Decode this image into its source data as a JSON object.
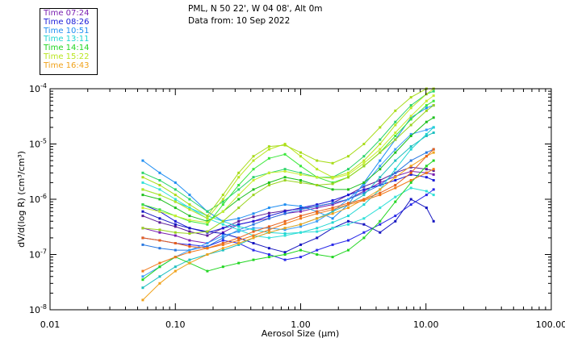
{
  "header": {
    "location": "PML, N 50 22', W 04 08', Alt 0m",
    "date": "Data from: 10 Sep 2022"
  },
  "legend": [
    {
      "label": "Time 07:24",
      "color": "#7a1fb0"
    },
    {
      "label": "Time 08:26",
      "color": "#1a1ad8"
    },
    {
      "label": "Time 10:51",
      "color": "#1f8ef2"
    },
    {
      "label": "Time 13:11",
      "color": "#1fd6d2"
    },
    {
      "label": "Time 14:14",
      "color": "#22d622"
    },
    {
      "label": "Time 15:22",
      "color": "#b9e61f"
    },
    {
      "label": "Time 16:43",
      "color": "#f0a21a"
    }
  ],
  "chart_data": {
    "type": "line",
    "title": "",
    "xlabel": "Aerosol Size (μm)",
    "ylabel": "dV/d(log R)  (cm³/cm³)",
    "xscale": "log",
    "yscale": "log",
    "xlim": [
      0.01,
      100
    ],
    "ylim": [
      1e-08,
      0.0001
    ],
    "xticks": [
      "0.01",
      "0.10",
      "1.00",
      "10.00",
      "100.00"
    ],
    "yticks": [
      {
        "base": "10",
        "exp": "-8"
      },
      {
        "base": "10",
        "exp": "-7"
      },
      {
        "base": "10",
        "exp": "-6"
      },
      {
        "base": "10",
        "exp": "-5"
      },
      {
        "base": "10",
        "exp": "-4"
      }
    ],
    "x": [
      0.055,
      0.075,
      0.1,
      0.13,
      0.18,
      0.24,
      0.32,
      0.42,
      0.56,
      0.75,
      1.0,
      1.35,
      1.8,
      2.4,
      3.2,
      4.3,
      5.7,
      7.6,
      10.1,
      11.5
    ],
    "series": [
      {
        "name": "Time 07:24",
        "color": "#7a1fb0",
        "values": [
          3e-07,
          2.5e-07,
          2.2e-07,
          1.8e-07,
          1.6e-07,
          2.5e-07,
          3.5e-07,
          4e-07,
          4.5e-07,
          5.5e-07,
          6e-07,
          7e-07,
          8e-07,
          1e-06,
          1.4e-06,
          2e-06,
          2.6e-06,
          3.2e-06,
          3e-06,
          2.8e-06
        ]
      },
      {
        "name": "Time 07:24",
        "color": "#5a1a98",
        "values": [
          5e-07,
          3.8e-07,
          3.2e-07,
          2.6e-07,
          2.2e-07,
          3e-07,
          4e-07,
          4.8e-07,
          5.6e-07,
          6.2e-07,
          6.8e-07,
          7.5e-07,
          8.5e-07,
          1.2e-06,
          1.7e-06,
          2.2e-06,
          3e-06,
          3.8e-06,
          3.5e-06,
          3.3e-06
        ]
      },
      {
        "name": "Time 08:26",
        "color": "#1a1ad8",
        "values": [
          8e-07,
          6e-07,
          4e-07,
          3e-07,
          2.5e-07,
          3e-07,
          3.5e-07,
          4e-07,
          5e-07,
          6e-07,
          7e-07,
          8e-07,
          9.5e-07,
          1.2e-06,
          1.5e-06,
          1.8e-06,
          2.2e-06,
          2.8e-06,
          2.5e-06,
          2.2e-06
        ]
      },
      {
        "name": "Time 08:26",
        "color": "#2a2ae8",
        "values": [
          2e-07,
          1.8e-07,
          1.6e-07,
          1.5e-07,
          1.4e-07,
          1.8e-07,
          1.6e-07,
          1.2e-07,
          1e-07,
          8e-08,
          9e-08,
          1.2e-07,
          1.5e-07,
          1.8e-07,
          2.5e-07,
          3.5e-07,
          5e-07,
          8e-07,
          1.2e-06,
          1.5e-06
        ]
      },
      {
        "name": "Time 08:26",
        "color": "#1515c0",
        "values": [
          6e-07,
          4.5e-07,
          3.5e-07,
          3e-07,
          2.6e-07,
          2.4e-07,
          2e-07,
          1.6e-07,
          1.3e-07,
          1.1e-07,
          1.5e-07,
          2e-07,
          3e-07,
          4e-07,
          3.5e-07,
          2.5e-07,
          4e-07,
          1e-06,
          7e-07,
          4e-07
        ]
      },
      {
        "name": "Time 10:51",
        "color": "#1f8ef2",
        "values": [
          5e-06,
          3e-06,
          2e-06,
          1.2e-06,
          6e-07,
          4e-07,
          4.5e-07,
          5.5e-07,
          7e-07,
          8e-07,
          7.5e-07,
          6e-07,
          4.5e-07,
          8e-07,
          2e-06,
          5e-06,
          1.2e-05,
          3e-05,
          4.5e-05,
          5e-05
        ]
      },
      {
        "name": "Time 10:51",
        "color": "#2878e0",
        "values": [
          1.5e-07,
          1.3e-07,
          1.2e-07,
          1.2e-07,
          1.4e-07,
          2e-07,
          2.8e-07,
          3.5e-07,
          4.5e-07,
          5.5e-07,
          6.5e-07,
          7.5e-07,
          8.5e-07,
          1e-06,
          1.3e-06,
          1.8e-06,
          3e-06,
          5e-06,
          7e-06,
          8e-06
        ]
      },
      {
        "name": "Time 10:51",
        "color": "#3a9ef8",
        "values": [
          4e-08,
          6e-08,
          9e-08,
          1.2e-07,
          1.6e-07,
          2.2e-07,
          2.6e-07,
          3e-07,
          3e-07,
          2.8e-07,
          3.2e-07,
          4e-07,
          6e-07,
          1e-06,
          1.8e-06,
          4e-06,
          8e-06,
          1.5e-05,
          1.8e-05,
          2e-05
        ]
      },
      {
        "name": "Time 13:11",
        "color": "#1fd6d2",
        "values": [
          1.5e-06,
          1.2e-06,
          9e-07,
          7e-07,
          5e-07,
          4e-07,
          3.2e-07,
          2.8e-07,
          2.5e-07,
          2.4e-07,
          2.5e-07,
          3e-07,
          3.8e-07,
          5e-07,
          8e-07,
          1.5e-06,
          3.5e-06,
          8e-06,
          1.5e-05,
          2e-05
        ]
      },
      {
        "name": "Time 13:11",
        "color": "#20c0c0",
        "values": [
          2.5e-08,
          4e-08,
          6e-08,
          8e-08,
          1e-07,
          1.2e-07,
          1.5e-07,
          2e-07,
          2.5e-07,
          3e-07,
          3.5e-07,
          4.5e-07,
          6e-07,
          8e-07,
          1.2e-06,
          2.5e-06,
          5e-06,
          9e-06,
          1.4e-05,
          1.6e-05
        ]
      },
      {
        "name": "Time 13:11",
        "color": "#30e0d8",
        "values": [
          2e-06,
          1.5e-06,
          1e-06,
          7e-07,
          4.5e-07,
          3.5e-07,
          2.8e-07,
          2.2e-07,
          2e-07,
          2.2e-07,
          2.5e-07,
          2.6e-07,
          3e-07,
          3.5e-07,
          4.5e-07,
          7e-07,
          1.1e-06,
          1.6e-06,
          1.4e-06,
          1.2e-06
        ]
      },
      {
        "name": "Time 14:14",
        "color": "#22d622",
        "values": [
          3.5e-08,
          6e-08,
          9e-08,
          7e-08,
          5e-08,
          6e-08,
          7e-08,
          8e-08,
          9e-08,
          1e-07,
          1.2e-07,
          1e-07,
          9e-08,
          1.2e-07,
          2e-07,
          4e-07,
          9e-07,
          2e-06,
          4e-06,
          5e-06
        ]
      },
      {
        "name": "Time 14:14",
        "color": "#1ec01e",
        "values": [
          1.2e-06,
          1e-06,
          7e-07,
          5e-07,
          4e-07,
          6e-07,
          1e-06,
          1.5e-06,
          2e-06,
          2.5e-06,
          2.2e-06,
          1.8e-06,
          1.5e-06,
          1.5e-06,
          2e-06,
          3.5e-06,
          7e-06,
          1.4e-05,
          2.5e-05,
          3e-05
        ]
      },
      {
        "name": "Time 14:14",
        "color": "#3ce83c",
        "values": [
          8e-07,
          6.5e-07,
          5e-07,
          4e-07,
          3.5e-07,
          8e-07,
          1.8e-06,
          3.5e-06,
          5.5e-06,
          6.5e-06,
          4e-06,
          2.5e-06,
          2e-06,
          2.5e-06,
          4e-06,
          7e-06,
          1.4e-05,
          2.8e-05,
          5e-05,
          6e-05
        ]
      },
      {
        "name": "Time 14:14",
        "color": "#2ad46a",
        "values": [
          3e-06,
          2.2e-06,
          1.5e-06,
          1e-06,
          6e-07,
          9e-07,
          1.5e-06,
          2.5e-06,
          3e-06,
          3.5e-06,
          3e-06,
          2.5e-06,
          2.5e-06,
          3.5e-06,
          6e-06,
          1.2e-05,
          2.5e-05,
          5e-05,
          8e-05,
          9e-05
        ]
      },
      {
        "name": "Time 15:22",
        "color": "#b9e61f",
        "values": [
          1.5e-06,
          1.2e-06,
          9e-07,
          6.5e-07,
          4.5e-07,
          1e-06,
          2.5e-06,
          5e-06,
          8e-06,
          1e-05,
          6e-06,
          3.5e-06,
          2.5e-06,
          3e-06,
          5e-06,
          1e-05,
          2.2e-05,
          4.5e-05,
          8e-05,
          0.0001
        ]
      },
      {
        "name": "Time 15:22",
        "color": "#a8dc1a",
        "values": [
          2.5e-06,
          1.8e-06,
          1.2e-06,
          8e-07,
          5e-07,
          1.2e-06,
          3e-06,
          6e-06,
          9e-06,
          9.5e-06,
          7e-06,
          5e-06,
          4.5e-06,
          6e-06,
          1e-05,
          2e-05,
          4e-05,
          7e-05,
          0.0001,
          0.0001
        ]
      },
      {
        "name": "Time 15:22",
        "color": "#c8ee30",
        "values": [
          7e-07,
          6e-07,
          5e-07,
          4.2e-07,
          3.8e-07,
          6e-07,
          1.2e-06,
          2.2e-06,
          3e-06,
          3.2e-06,
          2.8e-06,
          2.5e-06,
          2.4e-06,
          2.8e-06,
          4.5e-06,
          8e-06,
          1.6e-05,
          3.2e-05,
          6e-05,
          7.5e-05
        ]
      },
      {
        "name": "Time 15:22",
        "color": "#9ad41e",
        "values": [
          3e-07,
          2.8e-07,
          2.5e-07,
          2.4e-07,
          2.6e-07,
          4e-07,
          7e-07,
          1.2e-06,
          1.8e-06,
          2.2e-06,
          2e-06,
          1.8e-06,
          1.9e-06,
          2.5e-06,
          4e-06,
          7e-06,
          1.2e-05,
          2.2e-05,
          4e-05,
          5e-05
        ]
      },
      {
        "name": "Time 16:43",
        "color": "#f0a21a",
        "values": [
          1.5e-08,
          3e-08,
          5e-08,
          7e-08,
          1e-07,
          1.3e-07,
          1.6e-07,
          2e-07,
          2.5e-07,
          3e-07,
          3.5e-07,
          4.5e-07,
          5.5e-07,
          7e-07,
          1e-06,
          1.5e-06,
          2.5e-06,
          4e-06,
          6e-06,
          7e-06
        ]
      },
      {
        "name": "Time 16:43",
        "color": "#e8601a",
        "values": [
          2e-07,
          1.8e-07,
          1.6e-07,
          1.4e-07,
          1.3e-07,
          1.6e-07,
          2e-07,
          2.6e-07,
          3.2e-07,
          4e-07,
          5e-07,
          6e-07,
          7e-07,
          8.5e-07,
          1e-06,
          1.3e-06,
          1.8e-06,
          3e-06,
          6e-06,
          8e-06
        ]
      },
      {
        "name": "Time 16:43",
        "color": "#f07818",
        "values": [
          5e-08,
          7e-08,
          9e-08,
          1.1e-07,
          1.3e-07,
          1.5e-07,
          1.8e-07,
          2.2e-07,
          2.8e-07,
          3.6e-07,
          4.5e-07,
          5.5e-07,
          6.5e-07,
          8e-07,
          9.5e-07,
          1.2e-06,
          1.6e-06,
          2.2e-06,
          3e-06,
          3.5e-06
        ]
      }
    ]
  }
}
